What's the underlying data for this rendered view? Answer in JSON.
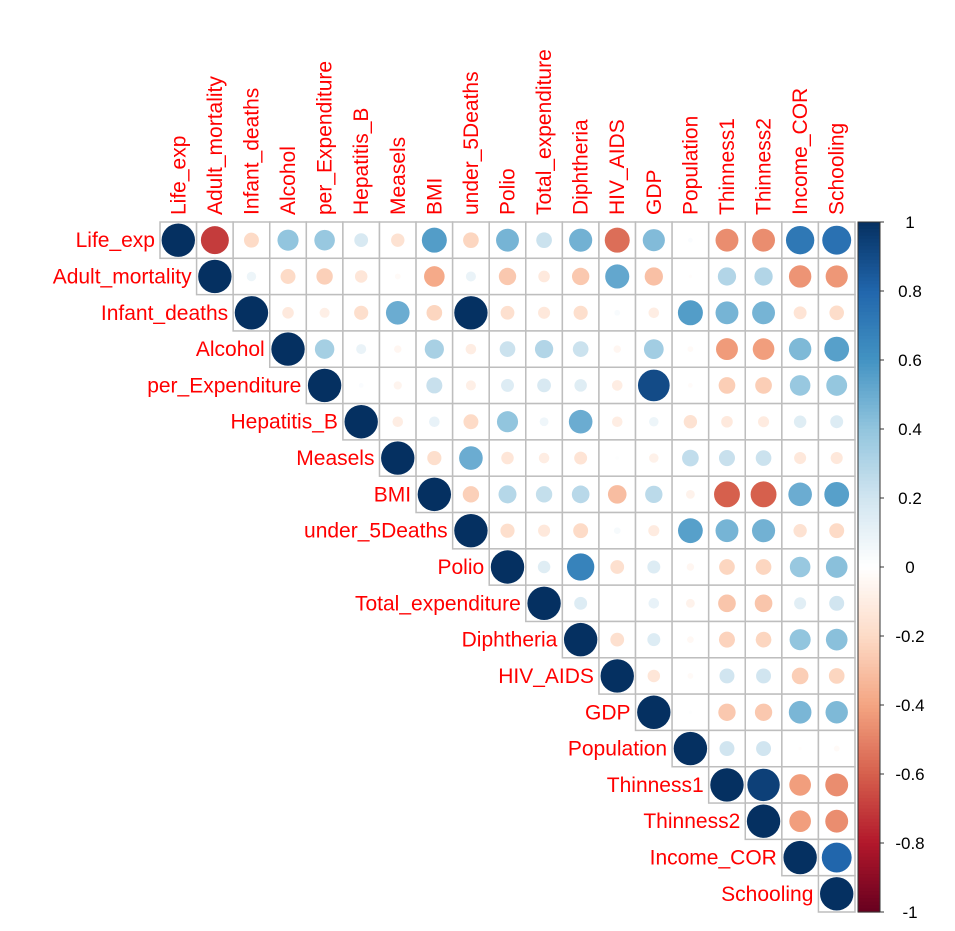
{
  "chart_data": {
    "type": "heatmap",
    "style": "corrplot-circle-upper",
    "variables": [
      "Life_exp",
      "Adult_mortality",
      "Infant_deaths",
      "Alcohol",
      "per_Expenditure",
      "Hepatitis_B",
      "Measels",
      "BMI",
      "under_5Deaths",
      "Polio",
      "Total_expenditure",
      "Diphtheria",
      "HIV_AIDS",
      "GDP",
      "Population",
      "Thinness1",
      "Thinness2",
      "Income_COR",
      "Schooling"
    ],
    "upper_triangle_rows": [
      [
        1,
        -0.7,
        -0.2,
        0.4,
        0.38,
        0.17,
        -0.16,
        0.56,
        -0.22,
        0.47,
        0.22,
        0.48,
        -0.56,
        0.44,
        0.02,
        -0.47,
        -0.47,
        0.72,
        0.75
      ],
      [
        1,
        0.08,
        -0.2,
        -0.24,
        -0.14,
        -0.03,
        -0.38,
        0.09,
        -0.27,
        -0.12,
        -0.27,
        0.52,
        -0.3,
        -0.01,
        0.3,
        0.3,
        -0.45,
        -0.44
      ],
      [
        1,
        -0.12,
        -0.09,
        -0.18,
        0.5,
        -0.22,
        0.997,
        -0.17,
        -0.13,
        -0.18,
        0.03,
        -0.1,
        0.56,
        0.47,
        0.47,
        -0.15,
        -0.19
      ],
      [
        1,
        0.34,
        0.09,
        -0.05,
        0.33,
        -0.1,
        0.22,
        0.3,
        0.22,
        -0.05,
        0.35,
        -0.03,
        -0.43,
        -0.42,
        0.45,
        0.55
      ],
      [
        1,
        0.02,
        -0.06,
        0.23,
        -0.09,
        0.15,
        0.17,
        0.14,
        -0.1,
        0.9,
        -0.02,
        -0.25,
        -0.25,
        0.38,
        0.39
      ],
      [
        1,
        -0.1,
        0.1,
        -0.2,
        0.4,
        0.07,
        0.5,
        -0.1,
        0.08,
        -0.16,
        -0.12,
        -0.11,
        0.14,
        0.15
      ],
      [
        1,
        -0.18,
        0.5,
        -0.14,
        -0.1,
        -0.15,
        0.01,
        -0.08,
        0.25,
        0.23,
        0.22,
        -0.13,
        -0.13
      ],
      [
        1,
        -0.24,
        0.29,
        0.24,
        0.28,
        -0.31,
        0.27,
        -0.07,
        -0.6,
        -0.6,
        0.5,
        0.55
      ],
      [
        1,
        -0.18,
        -0.13,
        -0.2,
        0.04,
        -0.11,
        0.55,
        0.47,
        0.48,
        -0.16,
        -0.2
      ],
      [
        1,
        0.14,
        0.67,
        -0.17,
        0.15,
        -0.05,
        -0.22,
        -0.22,
        0.38,
        0.42
      ],
      [
        1,
        0.15,
        0.0,
        0.1,
        -0.07,
        -0.28,
        -0.28,
        0.13,
        0.2
      ],
      [
        1,
        -0.17,
        0.15,
        -0.04,
        -0.23,
        -0.22,
        0.4,
        0.42
      ],
      [
        1,
        -0.14,
        -0.03,
        0.2,
        0.2,
        -0.25,
        -0.22
      ],
      [
        1,
        0.01,
        -0.27,
        -0.27,
        0.46,
        0.45
      ],
      [
        1,
        0.2,
        0.2,
        -0.01,
        -0.03
      ],
      [
        1,
        0.94,
        -0.42,
        -0.47
      ],
      [
        1,
        -0.42,
        -0.47
      ],
      [
        1,
        0.8
      ],
      [
        1
      ]
    ],
    "colorbar": {
      "range": [
        -1,
        1
      ],
      "tick_labels": [
        "1",
        "0.8",
        "0.6",
        "0.4",
        "0.2",
        "0",
        "-0.2",
        "-0.4",
        "-0.6",
        "-0.8",
        "-1"
      ],
      "palette": [
        "#67001F",
        "#B2182B",
        "#D6604D",
        "#F4A582",
        "#FDDBC7",
        "#FFFFFF",
        "#D1E5F0",
        "#92C5DE",
        "#4393C3",
        "#2166AC",
        "#053061"
      ]
    },
    "label_color": "#FF0000",
    "grid_color": "#BEBEBE"
  }
}
